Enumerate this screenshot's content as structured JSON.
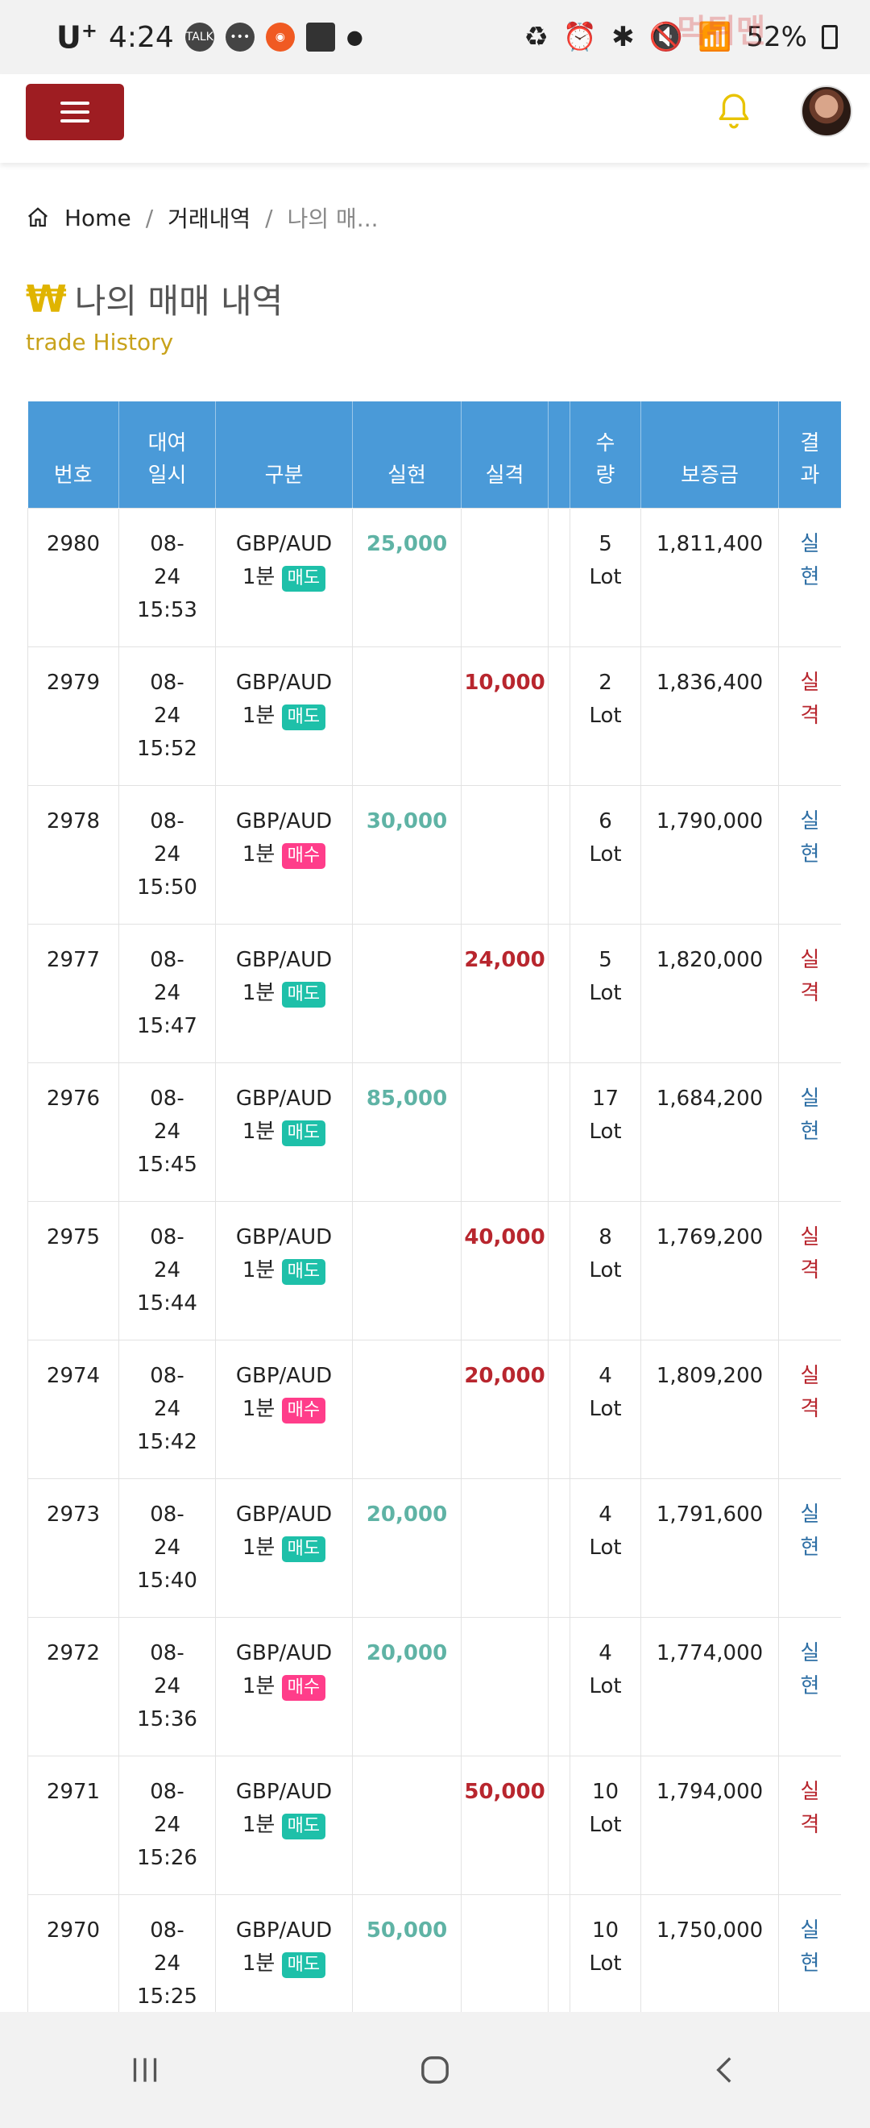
{
  "status_bar": {
    "carrier": "U",
    "carrier_sup": "+",
    "time": "4:24",
    "battery": "52%",
    "watermark": "먹튀맨"
  },
  "breadcrumb": {
    "home": "Home",
    "section": "거래내역",
    "current": "나의 매..."
  },
  "page": {
    "symbol": "₩",
    "title": "나의 매매 내역",
    "subtitle": "trade History"
  },
  "table": {
    "headers": {
      "no": "번호",
      "date_1": "대여",
      "date_2": "일시",
      "type": "구분",
      "gain": "실현",
      "loss": "실격",
      "qty_1": "수",
      "qty_2": "량",
      "margin": "보증금",
      "result_1": "결",
      "result_2": "과"
    },
    "rows": [
      {
        "no": "2980",
        "d1": "08-",
        "d2": "24",
        "d3": "15:53",
        "pair": "GBP/AUD",
        "tf": "1분",
        "side": "매도",
        "gain": "25,000",
        "loss": "",
        "qty": "5",
        "unit": "Lot",
        "margin": "1,811,400",
        "r1": "실",
        "r2": "현"
      },
      {
        "no": "2979",
        "d1": "08-",
        "d2": "24",
        "d3": "15:52",
        "pair": "GBP/AUD",
        "tf": "1분",
        "side": "매도",
        "gain": "",
        "loss": "10,000",
        "qty": "2",
        "unit": "Lot",
        "margin": "1,836,400",
        "r1": "실",
        "r2": "격"
      },
      {
        "no": "2978",
        "d1": "08-",
        "d2": "24",
        "d3": "15:50",
        "pair": "GBP/AUD",
        "tf": "1분",
        "side": "매수",
        "gain": "30,000",
        "loss": "",
        "qty": "6",
        "unit": "Lot",
        "margin": "1,790,000",
        "r1": "실",
        "r2": "현"
      },
      {
        "no": "2977",
        "d1": "08-",
        "d2": "24",
        "d3": "15:47",
        "pair": "GBP/AUD",
        "tf": "1분",
        "side": "매도",
        "gain": "",
        "loss": "24,000",
        "qty": "5",
        "unit": "Lot",
        "margin": "1,820,000",
        "r1": "실",
        "r2": "격"
      },
      {
        "no": "2976",
        "d1": "08-",
        "d2": "24",
        "d3": "15:45",
        "pair": "GBP/AUD",
        "tf": "1분",
        "side": "매도",
        "gain": "85,000",
        "loss": "",
        "qty": "17",
        "unit": "Lot",
        "margin": "1,684,200",
        "r1": "실",
        "r2": "현"
      },
      {
        "no": "2975",
        "d1": "08-",
        "d2": "24",
        "d3": "15:44",
        "pair": "GBP/AUD",
        "tf": "1분",
        "side": "매도",
        "gain": "",
        "loss": "40,000",
        "qty": "8",
        "unit": "Lot",
        "margin": "1,769,200",
        "r1": "실",
        "r2": "격"
      },
      {
        "no": "2974",
        "d1": "08-",
        "d2": "24",
        "d3": "15:42",
        "pair": "GBP/AUD",
        "tf": "1분",
        "side": "매수",
        "gain": "",
        "loss": "20,000",
        "qty": "4",
        "unit": "Lot",
        "margin": "1,809,200",
        "r1": "실",
        "r2": "격"
      },
      {
        "no": "2973",
        "d1": "08-",
        "d2": "24",
        "d3": "15:40",
        "pair": "GBP/AUD",
        "tf": "1분",
        "side": "매도",
        "gain": "20,000",
        "loss": "",
        "qty": "4",
        "unit": "Lot",
        "margin": "1,791,600",
        "r1": "실",
        "r2": "현"
      },
      {
        "no": "2972",
        "d1": "08-",
        "d2": "24",
        "d3": "15:36",
        "pair": "GBP/AUD",
        "tf": "1분",
        "side": "매수",
        "gain": "20,000",
        "loss": "",
        "qty": "4",
        "unit": "Lot",
        "margin": "1,774,000",
        "r1": "실",
        "r2": "현"
      },
      {
        "no": "2971",
        "d1": "08-",
        "d2": "24",
        "d3": "15:26",
        "pair": "GBP/AUD",
        "tf": "1분",
        "side": "매도",
        "gain": "",
        "loss": "50,000",
        "qty": "10",
        "unit": "Lot",
        "margin": "1,794,000",
        "r1": "실",
        "r2": "격"
      },
      {
        "no": "2970",
        "d1": "08-",
        "d2": "24",
        "d3": "15:25",
        "pair": "GBP/AUD",
        "tf": "1분",
        "side": "매도",
        "gain": "50,000",
        "loss": "",
        "qty": "10",
        "unit": "Lot",
        "margin": "1,750,000",
        "r1": "실",
        "r2": "현"
      }
    ]
  },
  "colors": {
    "header_blue": "#4a9ad8",
    "menu_red": "#9e1d22",
    "gain": "#5fb3a5",
    "loss": "#b8262e",
    "sell_badge": "#1ec0a9",
    "buy_badge": "#ff3d8a",
    "title_accent": "#e0b400"
  },
  "icons": [
    "menu-icon",
    "bell-icon",
    "avatar",
    "home-icon",
    "recents-icon",
    "home-nav-icon",
    "back-icon"
  ]
}
